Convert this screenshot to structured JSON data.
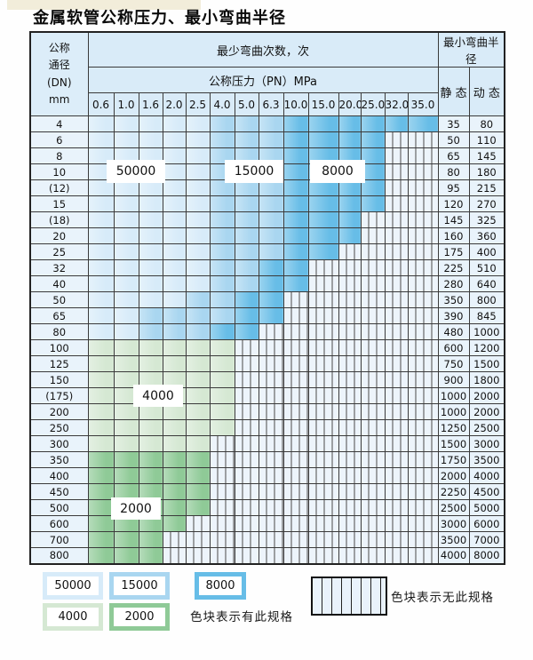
{
  "title": "金属软管公称压力、最小弯曲半径",
  "header": {
    "dn_lines": [
      "公称",
      "通径",
      "(DN)",
      "mm"
    ],
    "bend_times": "最少弯曲次数，次",
    "pressure_title": "公称压力（PN）MPa",
    "pressure_cols": [
      "0.6",
      "1.0",
      "1.6",
      "2.0",
      "2.5",
      "4.0",
      "5.0",
      "6.3",
      "10.0",
      "15.0",
      "20.0",
      "25.0",
      "32.0",
      "35.0"
    ],
    "radius_title": "最小弯曲半径",
    "static_label": "静 态",
    "dynamic_label": "动 态"
  },
  "zone_labels": {
    "z50000": "50000",
    "z15000": "15000",
    "z8000": "8000",
    "z4000": "4000",
    "z2000": "2000"
  },
  "legend": {
    "has_spec_text": "色块表示有此规格",
    "no_spec_text": "色块表示无此规格"
  },
  "colors": {
    "blue_50000": "#d7ebf9",
    "blue_15000": "#a9d6f0",
    "blue_8000": "#67bde7",
    "green_4000": "#d5e8d3",
    "green_2000": "#8fca97",
    "hatch_bg": "#edf4fb",
    "header_bg": "#d9ebf8",
    "row_label_bg": "#e9f3fb",
    "border": "#3a3a3a"
  },
  "rows": [
    {
      "dn": "4",
      "static": "35",
      "dynamic": "80",
      "zones": [
        [
          "b1",
          4
        ],
        [
          "b2",
          7
        ],
        [
          "b3",
          13
        ]
      ]
    },
    {
      "dn": "6",
      "static": "50",
      "dynamic": "110",
      "zones": [
        [
          "b1",
          4
        ],
        [
          "b2",
          7
        ],
        [
          "b3",
          11
        ]
      ]
    },
    {
      "dn": "8",
      "static": "65",
      "dynamic": "145",
      "zones": [
        [
          "b1",
          4
        ],
        [
          "b2",
          7
        ],
        [
          "b3",
          11
        ]
      ]
    },
    {
      "dn": "10",
      "static": "80",
      "dynamic": "180",
      "zones": [
        [
          "b1",
          4
        ],
        [
          "b2",
          7
        ],
        [
          "b3",
          11
        ]
      ]
    },
    {
      "dn": "(12)",
      "static": "95",
      "dynamic": "215",
      "zones": [
        [
          "b1",
          4
        ],
        [
          "b2",
          7
        ],
        [
          "b3",
          11
        ]
      ]
    },
    {
      "dn": "15",
      "static": "120",
      "dynamic": "270",
      "zones": [
        [
          "b1",
          4
        ],
        [
          "b2",
          7
        ],
        [
          "b3",
          11
        ]
      ]
    },
    {
      "dn": "(18)",
      "static": "145",
      "dynamic": "325",
      "zones": [
        [
          "b1",
          4
        ],
        [
          "b2",
          7
        ],
        [
          "b3",
          10
        ]
      ]
    },
    {
      "dn": "20",
      "static": "160",
      "dynamic": "360",
      "zones": [
        [
          "b1",
          4
        ],
        [
          "b2",
          7
        ],
        [
          "b3",
          10
        ]
      ]
    },
    {
      "dn": "25",
      "static": "175",
      "dynamic": "400",
      "zones": [
        [
          "b1",
          4
        ],
        [
          "b2",
          7
        ],
        [
          "b3",
          9
        ]
      ]
    },
    {
      "dn": "32",
      "static": "225",
      "dynamic": "510",
      "zones": [
        [
          "b1",
          4
        ],
        [
          "b2",
          6
        ],
        [
          "b3",
          8
        ]
      ]
    },
    {
      "dn": "40",
      "static": "280",
      "dynamic": "640",
      "zones": [
        [
          "b1",
          4
        ],
        [
          "b2",
          6
        ],
        [
          "b3",
          8
        ]
      ]
    },
    {
      "dn": "50",
      "static": "350",
      "dynamic": "800",
      "zones": [
        [
          "b1",
          3
        ],
        [
          "b2",
          5
        ],
        [
          "b3",
          7
        ]
      ]
    },
    {
      "dn": "65",
      "static": "390",
      "dynamic": "845",
      "zones": [
        [
          "b1",
          1
        ],
        [
          "b2",
          5
        ],
        [
          "b3",
          7
        ]
      ]
    },
    {
      "dn": "80",
      "static": "480",
      "dynamic": "1000",
      "zones": [
        [
          "b1",
          1
        ],
        [
          "b2",
          4
        ],
        [
          "b3",
          6
        ]
      ]
    },
    {
      "dn": "100",
      "static": "600",
      "dynamic": "1200",
      "zones": [
        [
          "g1",
          5
        ]
      ]
    },
    {
      "dn": "125",
      "static": "750",
      "dynamic": "1500",
      "zones": [
        [
          "g1",
          5
        ]
      ]
    },
    {
      "dn": "150",
      "static": "900",
      "dynamic": "1800",
      "zones": [
        [
          "g1",
          5
        ]
      ]
    },
    {
      "dn": "(175)",
      "static": "1000",
      "dynamic": "2000",
      "zones": [
        [
          "g1",
          5
        ]
      ]
    },
    {
      "dn": "200",
      "static": "1000",
      "dynamic": "2000",
      "zones": [
        [
          "g1",
          5
        ]
      ]
    },
    {
      "dn": "250",
      "static": "1250",
      "dynamic": "2500",
      "zones": [
        [
          "g1",
          5
        ]
      ]
    },
    {
      "dn": "300",
      "static": "1500",
      "dynamic": "3000",
      "zones": [
        [
          "g1",
          4
        ]
      ]
    },
    {
      "dn": "350",
      "static": "1750",
      "dynamic": "3500",
      "zones": [
        [
          "g2",
          4
        ]
      ]
    },
    {
      "dn": "400",
      "static": "2000",
      "dynamic": "4000",
      "zones": [
        [
          "g2",
          4
        ]
      ]
    },
    {
      "dn": "450",
      "static": "2250",
      "dynamic": "4500",
      "zones": [
        [
          "g2",
          4
        ]
      ]
    },
    {
      "dn": "500",
      "static": "2500",
      "dynamic": "5000",
      "zones": [
        [
          "g2",
          4
        ]
      ]
    },
    {
      "dn": "600",
      "static": "3000",
      "dynamic": "6000",
      "zones": [
        [
          "g2",
          3
        ]
      ]
    },
    {
      "dn": "700",
      "static": "3500",
      "dynamic": "7000",
      "zones": [
        [
          "g2",
          2
        ]
      ]
    },
    {
      "dn": "800",
      "static": "4000",
      "dynamic": "8000",
      "zones": [
        [
          "g2",
          2
        ]
      ]
    }
  ]
}
